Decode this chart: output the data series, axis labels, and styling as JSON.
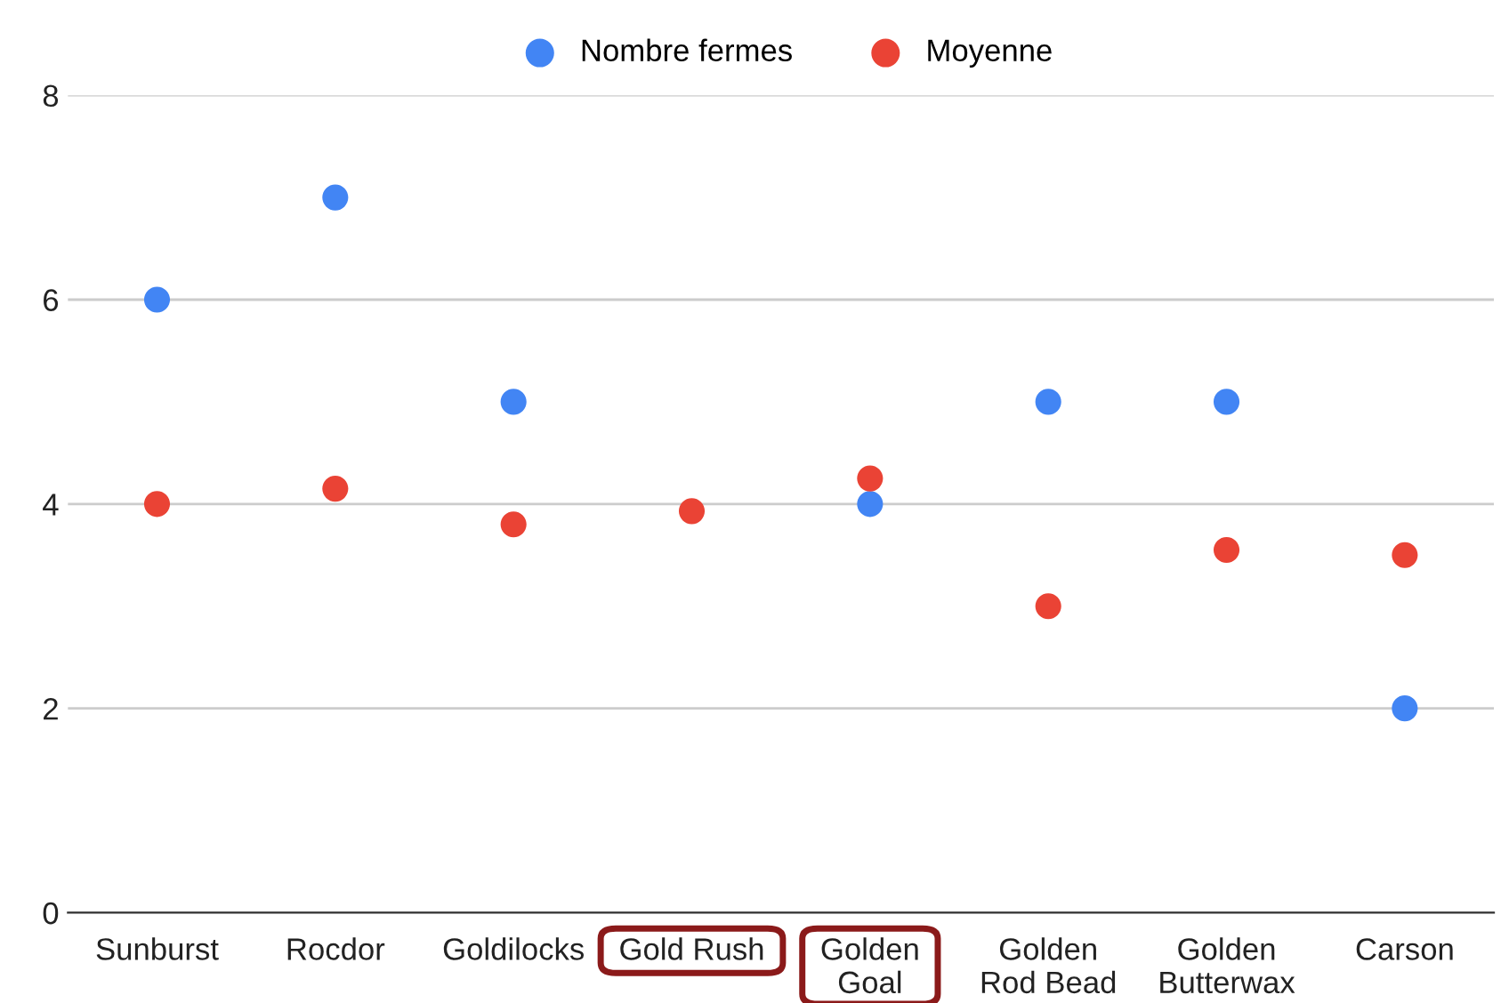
{
  "chart_data": {
    "type": "scatter",
    "categories": [
      "Sunburst",
      "Rocdor",
      "Goldilocks",
      "Gold Rush",
      "Golden\nGoal",
      "Golden\nRod Bead",
      "Golden\nButterwax",
      "Carson"
    ],
    "series": [
      {
        "name": "Nombre fermes",
        "color": "#4285f4",
        "values": [
          6,
          7,
          5,
          null,
          4,
          5,
          5,
          2
        ]
      },
      {
        "name": "Moyenne",
        "color": "#ea4335",
        "values": [
          4.0,
          4.15,
          3.8,
          3.93,
          4.25,
          3.0,
          3.55,
          3.5
        ]
      }
    ],
    "ylim": [
      0,
      8
    ],
    "yticks": [
      0,
      2,
      4,
      6,
      8
    ],
    "grid": "y",
    "legend": "top",
    "marker": "circle"
  }
}
